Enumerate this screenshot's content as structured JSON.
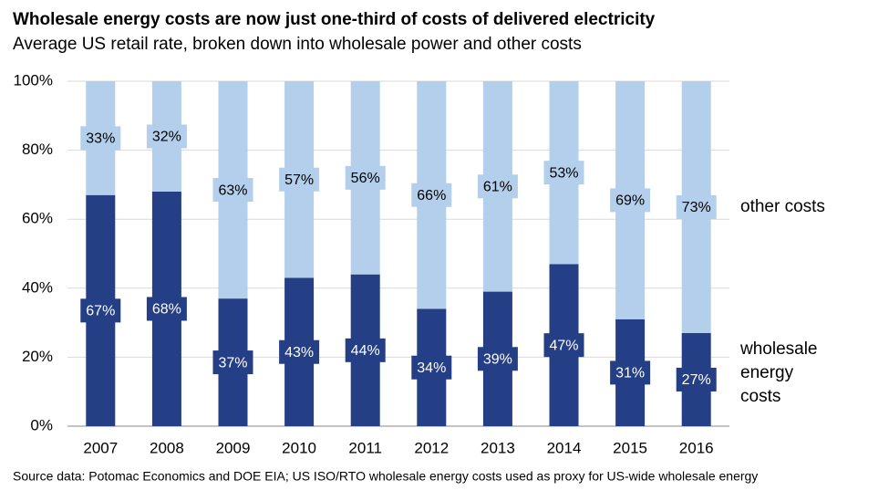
{
  "chart_data": {
    "type": "stacked_bar",
    "title": "Wholesale energy costs are now just one-third of costs of delivered electricity",
    "subtitle": "Average US retail rate, broken down into wholesale power and other costs",
    "categories": [
      "2007",
      "2008",
      "2009",
      "2010",
      "2011",
      "2012",
      "2013",
      "2014",
      "2015",
      "2016"
    ],
    "series": [
      {
        "name": "wholesale energy costs",
        "color": "#253f86",
        "label_color": "#ffffff",
        "values": [
          67,
          68,
          37,
          43,
          44,
          34,
          39,
          47,
          31,
          27
        ],
        "value_labels": [
          "67%",
          "68%",
          "37%",
          "43%",
          "44%",
          "34%",
          "39%",
          "47%",
          "31%",
          "27%"
        ]
      },
      {
        "name": "other costs",
        "color": "#b3cfeb",
        "label_color": "#000000",
        "values": [
          33,
          32,
          63,
          57,
          56,
          66,
          61,
          53,
          69,
          73
        ],
        "value_labels": [
          "33%",
          "32%",
          "63%",
          "57%",
          "56%",
          "66%",
          "61%",
          "53%",
          "69%",
          "73%"
        ]
      }
    ],
    "ylim": [
      0,
      100
    ],
    "yticks": [
      {
        "value": 0,
        "label": "0%"
      },
      {
        "value": 20,
        "label": "20%"
      },
      {
        "value": 40,
        "label": "40%"
      },
      {
        "value": 60,
        "label": "60%"
      },
      {
        "value": 80,
        "label": "80%"
      },
      {
        "value": 100,
        "label": "100%"
      }
    ],
    "grid": true,
    "legend": "right",
    "source": "Source data: Potomac Economics and DOE EIA; US ISO/RTO wholesale energy costs used as proxy for US-wide wholesale energy"
  }
}
